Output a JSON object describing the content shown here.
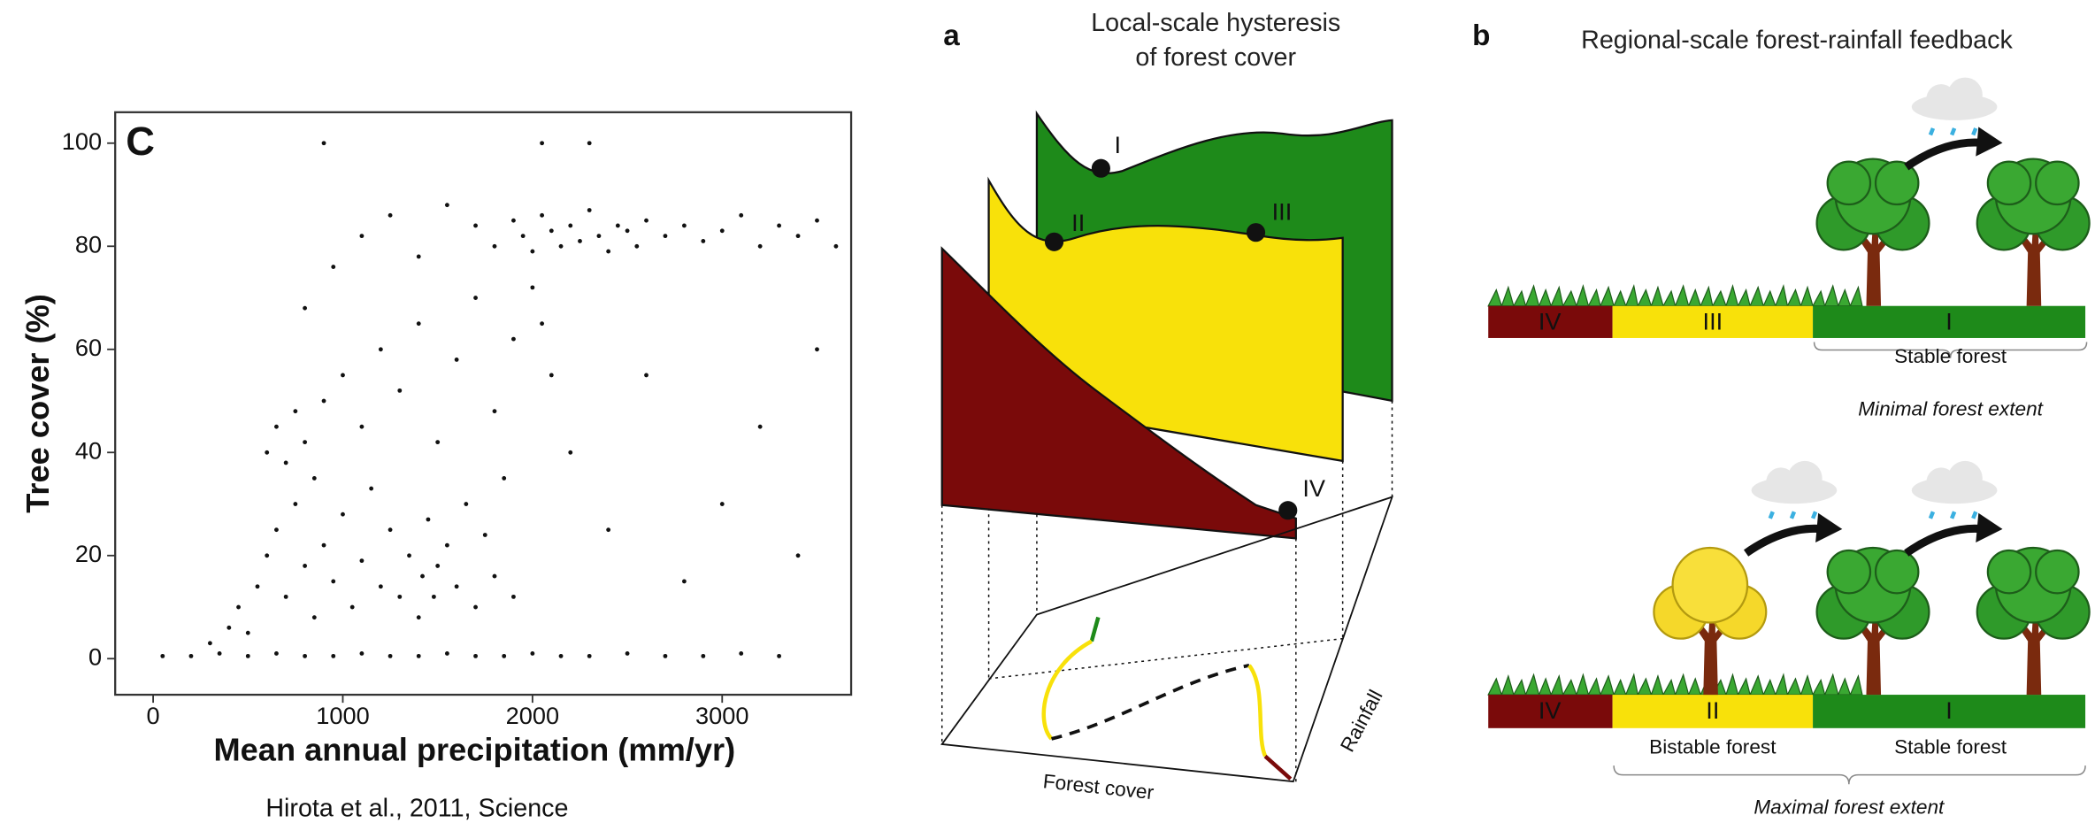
{
  "chart_data": {
    "type": "scatter",
    "panel_label": "C",
    "x_label": "Mean annual precipitation (mm/yr)",
    "y_label": "Tree cover (%)",
    "color": "#111111",
    "xlim": [
      -200,
      3680
    ],
    "ylim": [
      -7,
      106
    ],
    "xticks": [
      0,
      1000,
      2000,
      3000
    ],
    "yticks": [
      0,
      20,
      40,
      60,
      80,
      100
    ],
    "x": [
      50,
      200,
      350,
      500,
      650,
      800,
      950,
      1100,
      1250,
      1400,
      1550,
      1700,
      1850,
      2000,
      2150,
      2300,
      2500,
      2700,
      2900,
      3100,
      3300,
      300,
      400,
      450,
      500,
      550,
      600,
      650,
      700,
      750,
      800,
      850,
      900,
      950,
      1000,
      1050,
      1100,
      1150,
      1200,
      1250,
      1300,
      1350,
      1400,
      1420,
      1450,
      1480,
      1500,
      1550,
      1600,
      1650,
      1700,
      1750,
      1800,
      1850,
      1900,
      600,
      650,
      700,
      750,
      800,
      850,
      900,
      1000,
      1100,
      1200,
      1300,
      1400,
      1500,
      1600,
      1700,
      1800,
      1900,
      2000,
      2050,
      2100,
      800,
      950,
      1100,
      1250,
      1400,
      1550,
      1700,
      1800,
      1900,
      1950,
      2000,
      2050,
      2100,
      2150,
      2200,
      2250,
      2300,
      2350,
      2400,
      2450,
      2500,
      2550,
      2600,
      2700,
      2800,
      2900,
      3000,
      3100,
      3200,
      3300,
      3400,
      3500,
      3600,
      2200,
      2400,
      2600,
      2800,
      3000,
      3200,
      3400,
      3500,
      900,
      2050,
      2300
    ],
    "values": [
      0.5,
      0.5,
      1,
      0.5,
      1,
      0.5,
      0.5,
      1,
      0.5,
      0.5,
      1,
      0.5,
      0.5,
      1,
      0.5,
      0.5,
      1,
      0.5,
      0.5,
      1,
      0.5,
      3,
      6,
      10,
      5,
      14,
      20,
      25,
      12,
      30,
      18,
      8,
      22,
      15,
      28,
      10,
      19,
      33,
      14,
      25,
      12,
      20,
      8,
      16,
      27,
      12,
      18,
      22,
      14,
      30,
      10,
      24,
      16,
      35,
      12,
      40,
      45,
      38,
      48,
      42,
      35,
      50,
      55,
      45,
      60,
      52,
      65,
      42,
      58,
      70,
      48,
      62,
      72,
      65,
      55,
      68,
      76,
      82,
      86,
      78,
      88,
      84,
      80,
      85,
      82,
      79,
      86,
      83,
      80,
      84,
      81,
      87,
      82,
      79,
      84,
      83,
      80,
      85,
      82,
      84,
      81,
      83,
      86,
      80,
      84,
      82,
      85,
      80,
      40,
      25,
      55,
      15,
      30,
      45,
      20,
      60,
      100,
      100,
      100
    ]
  },
  "caption": "Hirota et al., 2011, Science",
  "panel_a": {
    "label": "a",
    "title_lines": [
      "Local-scale hysteresis",
      "of forest cover"
    ],
    "states": [
      "I",
      "II",
      "III",
      "IV"
    ],
    "axis_forest": "Forest cover",
    "axis_rainfall": "Rainfall"
  },
  "panel_b": {
    "label": "b",
    "title": "Regional-scale forest-rainfall feedback",
    "top_bar": {
      "segments": [
        "IV",
        "III",
        "I"
      ],
      "bracket": "Stable forest",
      "extent": "Minimal forest extent"
    },
    "bottom_bar": {
      "segments": [
        "IV",
        "II",
        "I"
      ],
      "brackets": [
        "Bistable forest",
        "Stable forest"
      ],
      "extent": "Maximal forest extent"
    }
  }
}
